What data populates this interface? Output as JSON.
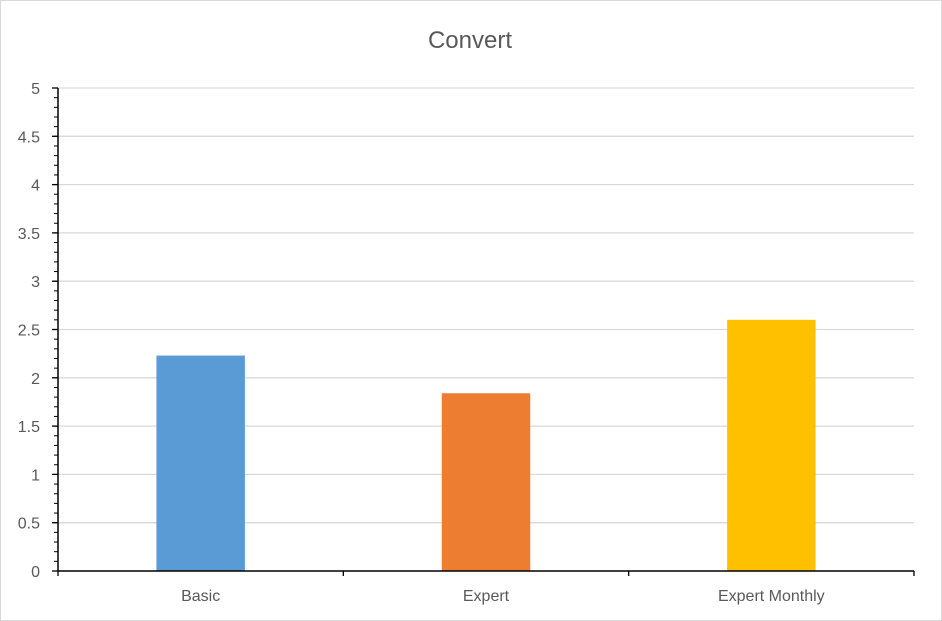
{
  "chart_data": {
    "type": "bar",
    "title": "Convert",
    "categories": [
      "Basic",
      "Expert",
      "Expert Monthly"
    ],
    "values": [
      2.23,
      1.84,
      2.6
    ],
    "colors": [
      "#5b9bd5",
      "#ed7d31",
      "#ffc000"
    ],
    "ylim": [
      0,
      5
    ],
    "yticks": [
      "0",
      "0.5",
      "1",
      "1.5",
      "2",
      "2.5",
      "3",
      "3.5",
      "4",
      "4.5",
      "5"
    ],
    "ytick_values": [
      0,
      0.5,
      1,
      1.5,
      2,
      2.5,
      3,
      3.5,
      4,
      4.5,
      5
    ],
    "grid": true,
    "legend": "none",
    "xlabel": "",
    "ylabel": ""
  }
}
